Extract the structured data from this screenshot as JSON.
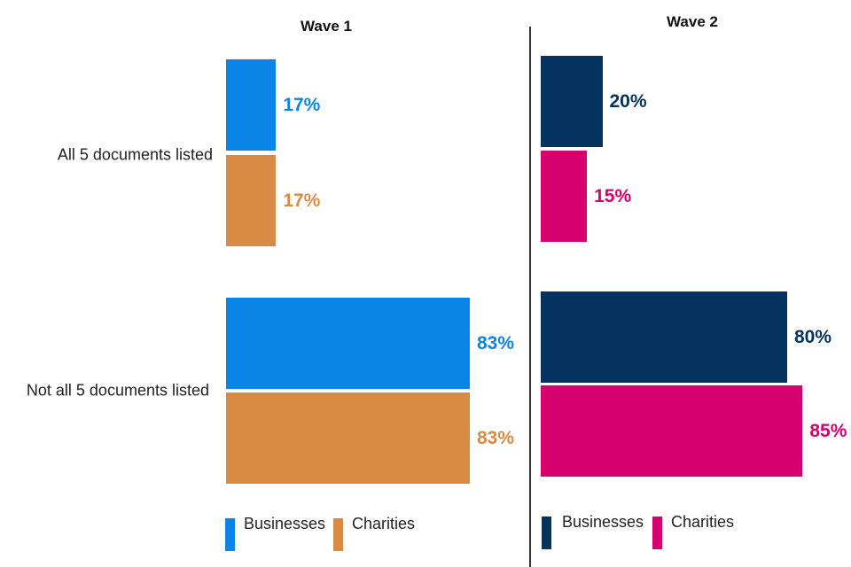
{
  "chart_data": [
    {
      "type": "bar",
      "orientation": "horizontal",
      "title": "Wave 1",
      "categories": [
        "All 5 documents listed",
        "Not all 5 documents listed"
      ],
      "series": [
        {
          "name": "Businesses",
          "values": [
            17,
            83
          ],
          "color": "#0b84e8"
        },
        {
          "name": "Charities",
          "values": [
            17,
            83
          ],
          "color": "#d98a45"
        }
      ],
      "value_format": "%",
      "legend": "bottom",
      "grid": false
    },
    {
      "type": "bar",
      "orientation": "horizontal",
      "title": "Wave 2",
      "categories": [
        "All 5 documents listed",
        "Not all 5 documents listed"
      ],
      "series": [
        {
          "name": "Businesses",
          "values": [
            20,
            80
          ],
          "color": "#05335f"
        },
        {
          "name": "Charities",
          "values": [
            15,
            85
          ],
          "color": "#d6006f"
        }
      ],
      "value_format": "%",
      "legend": "bottom",
      "grid": false
    }
  ]
}
